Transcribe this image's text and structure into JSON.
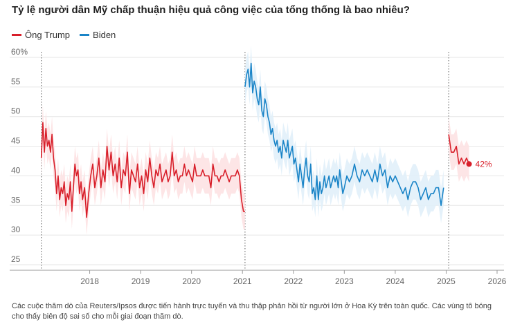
{
  "title": "Tỷ lệ người dân Mỹ chấp thuận hiệu quả công việc của tổng thống là bao nhiêu?",
  "legend": [
    {
      "name": "Ông Trump",
      "color": "#d81f2a"
    },
    {
      "name": "Biden",
      "color": "#1a84c7"
    }
  ],
  "note": "Các cuộc thăm dò của Reuters/Ipsos được tiến hành trực tuyến và thu thập phản hồi từ người lớn ở Hoa Kỳ trên toàn quốc. Các vùng tô bóng cho thấy biên độ sai số cho mỗi giai đoạn thăm dò.",
  "chart_data": {
    "type": "line",
    "title": "Tỷ lệ người dân Mỹ chấp thuận hiệu quả công việc của tổng thống là bao nhiêu?",
    "ylim": [
      25,
      60
    ],
    "xlim": [
      2017.0,
      2026.0
    ],
    "yticks": [
      25,
      30,
      35,
      40,
      45,
      50,
      55,
      60
    ],
    "ytick_labels": [
      "25",
      "30",
      "35",
      "40",
      "45",
      "50",
      "55",
      "60%"
    ],
    "xticks": [
      2018,
      2019,
      2020,
      2021,
      2022,
      2023,
      2024,
      2025,
      2026
    ],
    "xtick_labels": [
      "2018",
      "2019",
      "2020",
      "2021",
      "2022",
      "2023",
      "2024",
      "2025",
      "2026"
    ],
    "vlines": [
      2017.05,
      2021.05,
      2025.05
    ],
    "grid": true,
    "shaded_error_band": 3,
    "end_label": "42%",
    "series": [
      {
        "name": "Ông Trump",
        "color": "#d81f2a",
        "band_color": "#fde2e3",
        "x": [
          2017.05,
          2017.08,
          2017.11,
          2017.14,
          2017.17,
          2017.2,
          2017.23,
          2017.26,
          2017.29,
          2017.32,
          2017.35,
          2017.38,
          2017.41,
          2017.44,
          2017.47,
          2017.5,
          2017.53,
          2017.56,
          2017.59,
          2017.62,
          2017.65,
          2017.68,
          2017.71,
          2017.74,
          2017.77,
          2017.8,
          2017.83,
          2017.86,
          2017.9,
          2017.94,
          2017.98,
          2018.02,
          2018.06,
          2018.1,
          2018.14,
          2018.18,
          2018.22,
          2018.26,
          2018.3,
          2018.34,
          2018.38,
          2018.42,
          2018.46,
          2018.5,
          2018.54,
          2018.58,
          2018.62,
          2018.66,
          2018.7,
          2018.74,
          2018.78,
          2018.82,
          2018.86,
          2018.9,
          2018.94,
          2018.98,
          2019.02,
          2019.06,
          2019.1,
          2019.14,
          2019.18,
          2019.22,
          2019.26,
          2019.3,
          2019.34,
          2019.38,
          2019.42,
          2019.46,
          2019.5,
          2019.54,
          2019.58,
          2019.62,
          2019.66,
          2019.7,
          2019.74,
          2019.78,
          2019.82,
          2019.86,
          2019.9,
          2019.94,
          2019.98,
          2020.02,
          2020.06,
          2020.1,
          2020.14,
          2020.18,
          2020.22,
          2020.26,
          2020.3,
          2020.34,
          2020.38,
          2020.42,
          2020.46,
          2020.5,
          2020.54,
          2020.58,
          2020.62,
          2020.66,
          2020.7,
          2020.74,
          2020.78,
          2020.82,
          2020.86,
          2020.9,
          2020.94,
          2020.98,
          2021.02,
          2021.05,
          2025.05,
          2025.1,
          2025.15,
          2025.2,
          2025.25,
          2025.3,
          2025.35,
          2025.4,
          2025.45
        ],
        "values": [
          43,
          49,
          44,
          48,
          45,
          46,
          44,
          47,
          43,
          41,
          37,
          40,
          36,
          38,
          37,
          39,
          35,
          37,
          36,
          39,
          34,
          38,
          42,
          40,
          41,
          37,
          39,
          36,
          38,
          33,
          37,
          40,
          42,
          38,
          40,
          43,
          38,
          41,
          39,
          45,
          41,
          44,
          40,
          42,
          39,
          43,
          38,
          41,
          40,
          44,
          37,
          41,
          40,
          39,
          42,
          38,
          40,
          37,
          41,
          39,
          43,
          40,
          38,
          41,
          40,
          42,
          39,
          40,
          41,
          39,
          40,
          44,
          40,
          41,
          39,
          40,
          40,
          42,
          40,
          41,
          40,
          39,
          42,
          40,
          40,
          40,
          41,
          40,
          40,
          40,
          38,
          42,
          40,
          40,
          39,
          40,
          40,
          41,
          40,
          39,
          40,
          40,
          40,
          41,
          40,
          36,
          34,
          34,
          47,
          44,
          44,
          45,
          42,
          43,
          42,
          43,
          42
        ]
      },
      {
        "name": "Biden",
        "color": "#1a84c7",
        "band_color": "#e1f0fa",
        "x": [
          2021.05,
          2021.08,
          2021.11,
          2021.14,
          2021.17,
          2021.2,
          2021.23,
          2021.26,
          2021.29,
          2021.32,
          2021.35,
          2021.38,
          2021.41,
          2021.44,
          2021.47,
          2021.5,
          2021.53,
          2021.56,
          2021.59,
          2021.62,
          2021.65,
          2021.68,
          2021.71,
          2021.74,
          2021.77,
          2021.8,
          2021.83,
          2021.86,
          2021.89,
          2021.92,
          2021.95,
          2021.98,
          2022.01,
          2022.04,
          2022.07,
          2022.1,
          2022.13,
          2022.16,
          2022.19,
          2022.22,
          2022.25,
          2022.28,
          2022.31,
          2022.34,
          2022.37,
          2022.4,
          2022.43,
          2022.46,
          2022.49,
          2022.52,
          2022.55,
          2022.58,
          2022.61,
          2022.64,
          2022.67,
          2022.7,
          2022.73,
          2022.76,
          2022.79,
          2022.82,
          2022.85,
          2022.88,
          2022.91,
          2022.94,
          2022.97,
          2023.0,
          2023.05,
          2023.1,
          2023.15,
          2023.2,
          2023.25,
          2023.3,
          2023.35,
          2023.4,
          2023.45,
          2023.5,
          2023.55,
          2023.6,
          2023.65,
          2023.7,
          2023.75,
          2023.8,
          2023.85,
          2023.9,
          2023.95,
          2024.0,
          2024.05,
          2024.1,
          2024.15,
          2024.2,
          2024.25,
          2024.3,
          2024.35,
          2024.4,
          2024.45,
          2024.5,
          2024.55,
          2024.6,
          2024.65,
          2024.7,
          2024.75,
          2024.8,
          2024.85,
          2024.9,
          2024.95
        ],
        "values": [
          55,
          57,
          58,
          55,
          59,
          54,
          56,
          55,
          53,
          52,
          55,
          51,
          50,
          53,
          52,
          50,
          49,
          47,
          48,
          46,
          45,
          46,
          44,
          45,
          43,
          46,
          45,
          44,
          46,
          43,
          44,
          45,
          42,
          43,
          41,
          39,
          42,
          40,
          38,
          41,
          43,
          40,
          39,
          42,
          37,
          38,
          36,
          40,
          36,
          39,
          37,
          38,
          40,
          38,
          39,
          40,
          38,
          39,
          40,
          39,
          40,
          38,
          41,
          39,
          37,
          38,
          40,
          39,
          40,
          42,
          40,
          39,
          41,
          40,
          41,
          40,
          39,
          41,
          39,
          42,
          40,
          41,
          38,
          40,
          39,
          40,
          39,
          38,
          37,
          38,
          36,
          38,
          39,
          39,
          38,
          36,
          37,
          38,
          36,
          37,
          37,
          38,
          38,
          35,
          38
        ]
      }
    ]
  }
}
